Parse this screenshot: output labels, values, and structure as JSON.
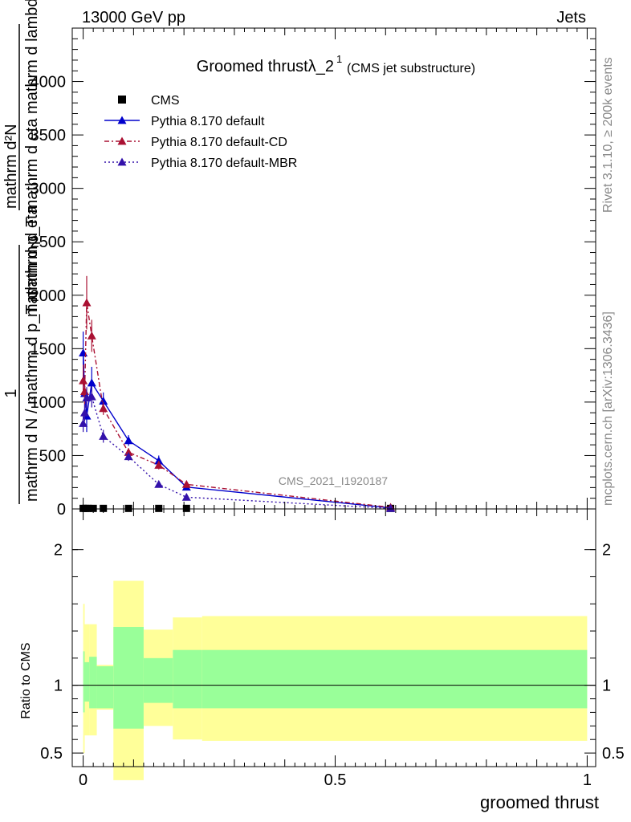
{
  "header": {
    "left": "13000 GeV pp",
    "right": "Jets",
    "side_top": "Rivet 3.1.10, ≥ 200k events",
    "side_bottom": "mcplots.cern.ch [arXiv:1306.3436]",
    "watermark": "CMS_2021_I1920187"
  },
  "title": {
    "main": "Groomed thrustλ_2",
    "sup": "1",
    "small": "(CMS jet substructure)"
  },
  "ylabel_upper": {
    "numerator_1": "1",
    "denominator_1": "mathrm d N / mathrm d p_T mathrm d eta",
    "numerator_2": "mathrm d²N",
    "denominator_2": "mathrm d p_T mathrm d eta mathrm d lambda"
  },
  "colors": {
    "default": "#0000cc",
    "cd": "#aa1133",
    "mbr": "#3311aa",
    "band_outer": "#ffff99",
    "band_inner": "#99ff99"
  },
  "chart_data": [
    {
      "type": "line",
      "xlim": [
        0,
        1
      ],
      "ylim": [
        0,
        4500
      ],
      "yticks": [
        0,
        500,
        1000,
        1500,
        2000,
        2500,
        3000,
        3500,
        4000
      ],
      "yticklabels": [
        "0",
        "500",
        "1000",
        "1500",
        "2000",
        "2500",
        "3000",
        "3500",
        "4000"
      ],
      "legend_position": "top-left",
      "series": [
        {
          "name": "CMS",
          "marker": "square",
          "x": [
            0.0,
            0.005,
            0.01,
            0.02,
            0.04,
            0.09,
            0.15,
            0.205,
            0.61
          ],
          "y": [
            5,
            5,
            5,
            5,
            5,
            5,
            5,
            5,
            5
          ]
        },
        {
          "name": "Pythia 8.170 default",
          "marker": "triangle",
          "style": "solid",
          "x": [
            0.0,
            0.003,
            0.007,
            0.017,
            0.04,
            0.09,
            0.15,
            0.205,
            0.61
          ],
          "y": [
            1460,
            1080,
            870,
            1180,
            1010,
            640,
            450,
            205,
            10
          ],
          "err": [
            200,
            150,
            150,
            150,
            80,
            50,
            50,
            20,
            5
          ]
        },
        {
          "name": "Pythia 8.170 default-CD",
          "marker": "triangle",
          "style": "dash-dot",
          "x": [
            0.0,
            0.003,
            0.007,
            0.017,
            0.04,
            0.09,
            0.15,
            0.205,
            0.61
          ],
          "y": [
            1200,
            1100,
            1930,
            1620,
            940,
            530,
            410,
            230,
            15
          ],
          "err": [
            150,
            120,
            250,
            150,
            60,
            40,
            40,
            20,
            5
          ]
        },
        {
          "name": "Pythia 8.170 default-MBR",
          "marker": "triangle",
          "style": "dotted",
          "x": [
            0.0,
            0.003,
            0.007,
            0.017,
            0.04,
            0.09,
            0.15,
            0.205,
            0.61
          ],
          "y": [
            800,
            900,
            1040,
            1050,
            680,
            490,
            230,
            110,
            5
          ],
          "err": [
            80,
            80,
            100,
            100,
            60,
            40,
            20,
            10,
            3
          ]
        }
      ]
    },
    {
      "type": "area",
      "xlabel": "groomed thrust",
      "ylabel": "Ratio to CMS",
      "xlim": [
        0,
        1
      ],
      "ylim": [
        0.4,
        2.3
      ],
      "xticks": [
        0,
        0.5,
        1
      ],
      "xticklabels": [
        "0",
        "0.5",
        "1"
      ],
      "yticks": [
        0.5,
        1,
        2
      ],
      "yticklabels": [
        "0.5",
        "1",
        "2"
      ],
      "bands": [
        {
          "x0": 0.0,
          "x1": 0.003,
          "outer": [
            0.5,
            1.6
          ],
          "inner": [
            0.8,
            1.25
          ]
        },
        {
          "x0": 0.003,
          "x1": 0.012,
          "outer": [
            0.63,
            1.45
          ],
          "inner": [
            0.88,
            1.17
          ]
        },
        {
          "x0": 0.012,
          "x1": 0.027,
          "outer": [
            0.63,
            1.45
          ],
          "inner": [
            0.83,
            1.21
          ]
        },
        {
          "x0": 0.027,
          "x1": 0.06,
          "outer": [
            0.82,
            1.15
          ],
          "inner": [
            0.83,
            1.14
          ]
        },
        {
          "x0": 0.06,
          "x1": 0.12,
          "outer": [
            0.3,
            1.77
          ],
          "inner": [
            0.68,
            1.43
          ]
        },
        {
          "x0": 0.12,
          "x1": 0.178,
          "outer": [
            0.7,
            1.41
          ],
          "inner": [
            0.87,
            1.2
          ]
        },
        {
          "x0": 0.178,
          "x1": 0.236,
          "outer": [
            0.6,
            1.5
          ],
          "inner": [
            0.83,
            1.26
          ]
        },
        {
          "x0": 0.236,
          "x1": 1.0,
          "outer": [
            0.59,
            1.51
          ],
          "inner": [
            0.83,
            1.26
          ]
        }
      ],
      "reference": 1
    }
  ]
}
